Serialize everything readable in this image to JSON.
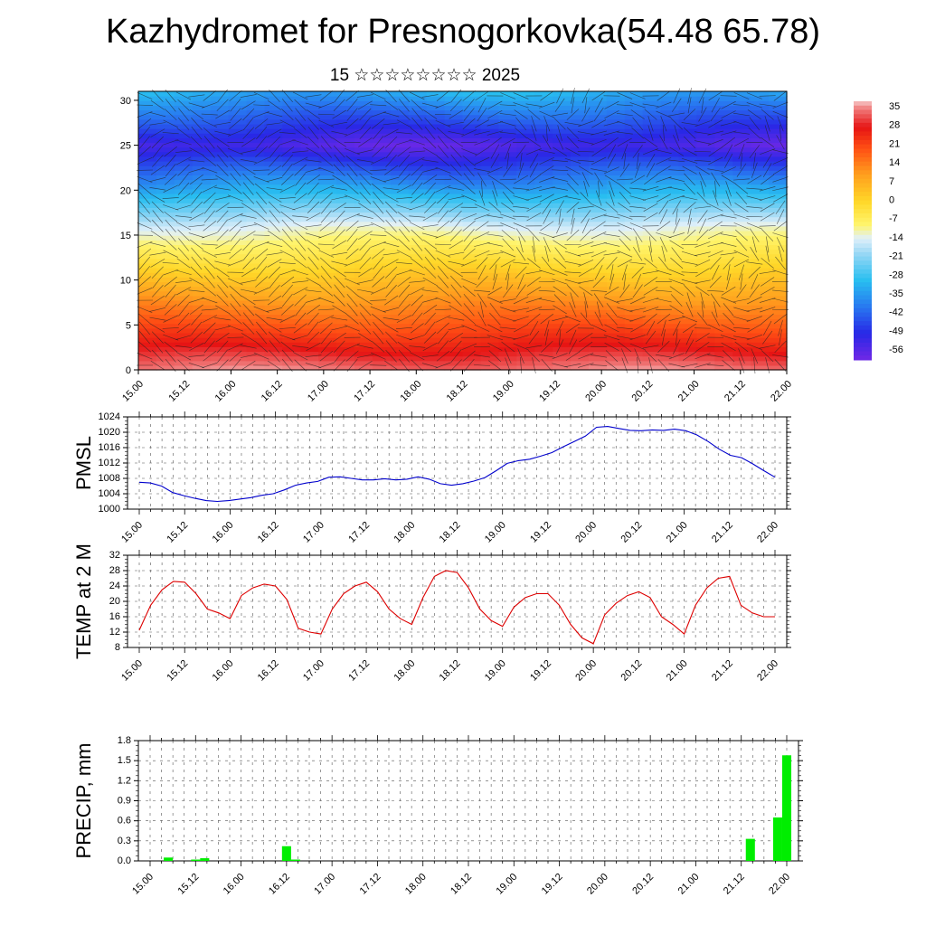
{
  "title": "Kazhydromet for Presnogorkovka(54.48 65.78)",
  "subtitle": "15 ☆☆☆☆☆☆☆☆ 2025",
  "chart_data": [
    {
      "type": "heatmap",
      "title": "",
      "x_ticks": [
        "15.00",
        "15.12",
        "16.00",
        "16.12",
        "17.00",
        "17.12",
        "18.00",
        "18.12",
        "19.00",
        "19.12",
        "20.00",
        "20.12",
        "21.00",
        "21.12",
        "22.00"
      ],
      "y_ticks": [
        0,
        5,
        10,
        15,
        20,
        25,
        30
      ],
      "ylim": [
        0,
        31
      ],
      "colorbar_labels": [
        "35",
        "28",
        "21",
        "14",
        "7",
        "0",
        "-7",
        "-14",
        "-21",
        "-28",
        "-35",
        "-42",
        "-49",
        "-56"
      ],
      "colorbar_range": [
        -60,
        38
      ],
      "description_values": "temperature by level: ~35 at level 0 decreasing to ~-14 at level 16 and ~-56 near level 25",
      "wind_barbs": true
    },
    {
      "type": "line",
      "ylabel": "PMSL",
      "ylim": [
        1000,
        1024
      ],
      "y_ticks": [
        1000,
        1004,
        1008,
        1012,
        1016,
        1020,
        1024
      ],
      "x_ticks": [
        "15.00",
        "15.12",
        "16.00",
        "16.12",
        "17.00",
        "17.12",
        "18.00",
        "18.12",
        "19.00",
        "19.12",
        "20.00",
        "20.12",
        "21.00",
        "21.12",
        "22.00"
      ],
      "color": "#0000cc",
      "values": [
        1007,
        1006.8,
        1006,
        1004.3,
        1003.5,
        1002.8,
        1002.2,
        1002,
        1002.2,
        1002.6,
        1003,
        1003.6,
        1004,
        1005,
        1006.2,
        1006.8,
        1007.2,
        1008.3,
        1008.4,
        1008,
        1007.6,
        1007.6,
        1007.9,
        1007.6,
        1007.8,
        1008.4,
        1007.8,
        1006.6,
        1006.2,
        1006.6,
        1007.3,
        1008.2,
        1010,
        1011.9,
        1012.6,
        1013,
        1013.8,
        1014.7,
        1016.2,
        1017.6,
        1019,
        1021.3,
        1021.5,
        1021,
        1020.5,
        1020.4,
        1020.6,
        1020.5,
        1020.8,
        1020.4,
        1019.3,
        1017.6,
        1015.6,
        1014,
        1013.4,
        1011.8,
        1010,
        1008.3
      ]
    },
    {
      "type": "line",
      "ylabel": "TEMP at 2 M",
      "ylim": [
        8,
        32
      ],
      "y_ticks": [
        8,
        12,
        16,
        20,
        24,
        28,
        32
      ],
      "x_ticks": [
        "15.00",
        "15.12",
        "16.00",
        "16.12",
        "17.00",
        "17.12",
        "18.00",
        "18.12",
        "19.00",
        "19.12",
        "20.00",
        "20.12",
        "21.00",
        "21.12",
        "22.00"
      ],
      "color": "#dd0000",
      "values": [
        12.5,
        19,
        23,
        25.2,
        25,
        22,
        18,
        17,
        15.5,
        21.5,
        23.5,
        24.5,
        24,
        20.5,
        13,
        12,
        11.5,
        18,
        22,
        24,
        25,
        22.5,
        18,
        15.5,
        14,
        21,
        26.5,
        28,
        27.5,
        23.5,
        18,
        15,
        13.5,
        18.5,
        21,
        22,
        22,
        19,
        14,
        10.5,
        9,
        16.5,
        19.5,
        21.5,
        22.5,
        21,
        16,
        14,
        11.5,
        19,
        23.5,
        26,
        26.5,
        19,
        17,
        16,
        16
      ]
    },
    {
      "type": "bar",
      "ylabel": "PRECIP, mm",
      "ylim": [
        0,
        1.8
      ],
      "y_ticks": [
        "0.0",
        "0.3",
        "0.6",
        "0.9",
        "1.2",
        "1.5",
        "1.8"
      ],
      "x_ticks": [
        "15.00",
        "15.12",
        "16.00",
        "16.12",
        "17.00",
        "17.12",
        "18.00",
        "18.12",
        "19.00",
        "19.12",
        "20.00",
        "20.12",
        "21.00",
        "21.12",
        "22.00"
      ],
      "color": "#00ee00",
      "values": [
        0,
        0,
        0.05,
        0,
        0,
        0.02,
        0.04,
        0,
        0,
        0,
        0,
        0,
        0,
        0,
        0,
        0.22,
        0.02,
        0,
        0,
        0,
        0,
        0,
        0,
        0,
        0,
        0,
        0,
        0,
        0,
        0,
        0,
        0,
        0,
        0,
        0,
        0,
        0,
        0,
        0,
        0,
        0,
        0,
        0,
        0,
        0,
        0,
        0,
        0,
        0,
        0,
        0,
        0,
        0,
        0,
        0,
        0,
        0,
        0,
        0,
        0,
        0,
        0,
        0,
        0,
        0,
        0,
        0.33,
        0,
        0,
        0.65,
        1.58
      ]
    }
  ]
}
